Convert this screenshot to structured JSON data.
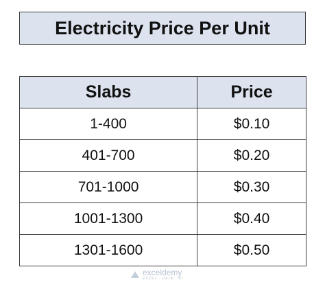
{
  "header": {
    "title": "Electricity Price Per Unit"
  },
  "table": {
    "headers": [
      "Slabs",
      "Price"
    ],
    "rows": [
      [
        "1-400",
        "$0.10"
      ],
      [
        "401-700",
        "$0.20"
      ],
      [
        "701-1000",
        "$0.30"
      ],
      [
        "1001-1300",
        "$0.40"
      ],
      [
        "1301-1600",
        "$0.50"
      ]
    ]
  },
  "watermark": {
    "name": "exceldemy",
    "tagline": "EXCEL · DATA · BI"
  }
}
